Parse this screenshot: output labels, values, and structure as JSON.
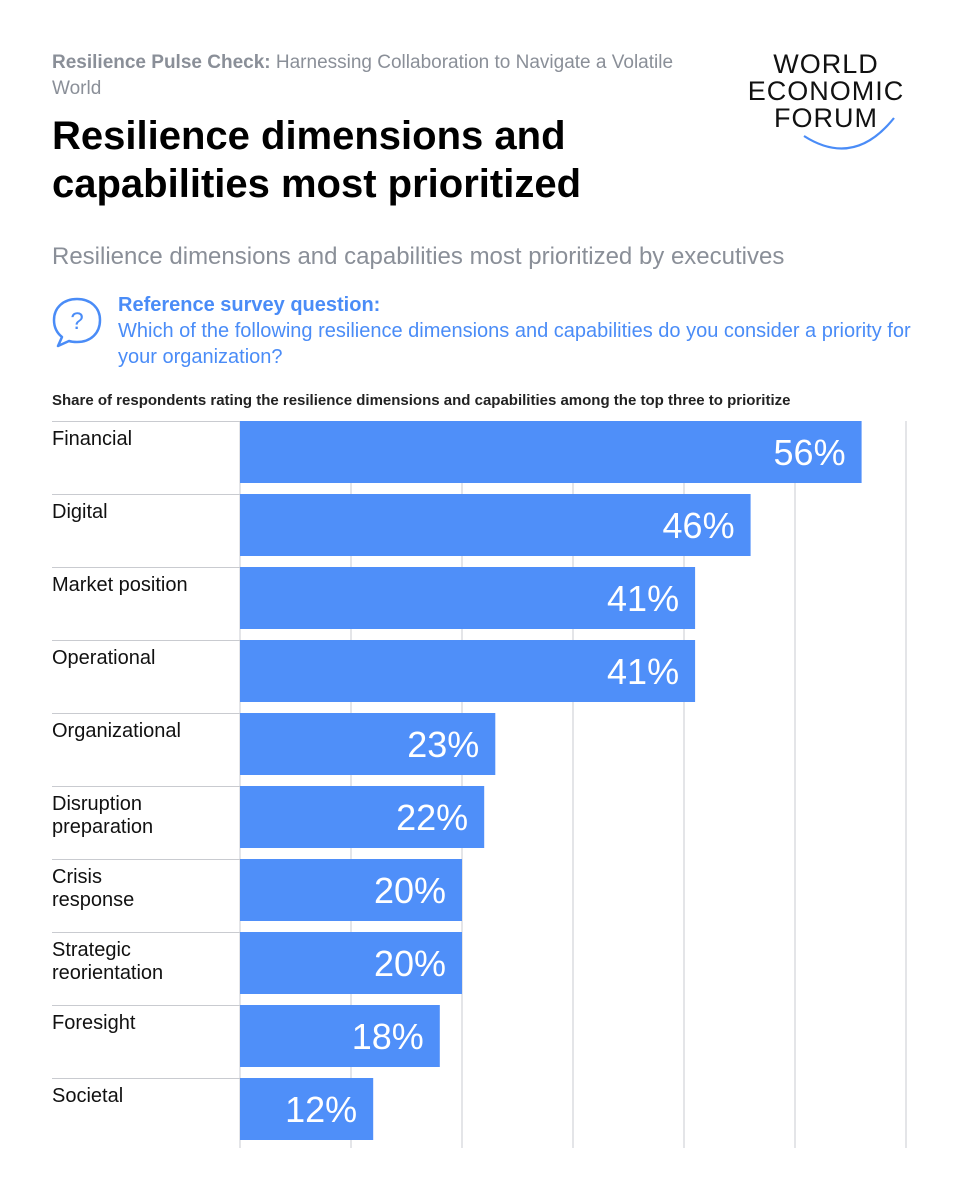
{
  "header": {
    "report_name": "Resilience Pulse Check:",
    "report_subtitle": " Harnessing Collaboration to Navigate a Volatile World",
    "logo_lines": [
      "WORLD",
      "ECONOMIC",
      "FORUM"
    ]
  },
  "title": "Resilience dimensions and capabilities most prioritized",
  "subtitle": "Resilience dimensions and capabilities most prioritized by executives",
  "question": {
    "label": "Reference survey question:",
    "text": "Which of the following resilience dimensions and capabilities do you consider a priority for your organization?"
  },
  "colors": {
    "bar": "#4f8ff9",
    "accent": "#4a8cf7",
    "muted_text": "#8a8f98",
    "gridline": "#c9cbd0"
  },
  "chart_data": {
    "type": "bar",
    "orientation": "horizontal",
    "title": "Share of respondents rating the resilience dimensions and capabilities among the top three to prioritize",
    "categories": [
      [
        "Financial"
      ],
      [
        "Digital"
      ],
      [
        "Market position"
      ],
      [
        "Operational"
      ],
      [
        "Organizational"
      ],
      [
        "Disruption",
        "preparation"
      ],
      [
        "Crisis",
        "response"
      ],
      [
        "Strategic",
        "reorientation"
      ],
      [
        "Foresight"
      ],
      [
        "Societal"
      ]
    ],
    "values": [
      56,
      46,
      41,
      41,
      23,
      22,
      20,
      20,
      18,
      12
    ],
    "value_suffix": "%",
    "xlim": [
      0,
      60
    ],
    "gridline_step": 10,
    "grid": true,
    "legend": "none"
  }
}
